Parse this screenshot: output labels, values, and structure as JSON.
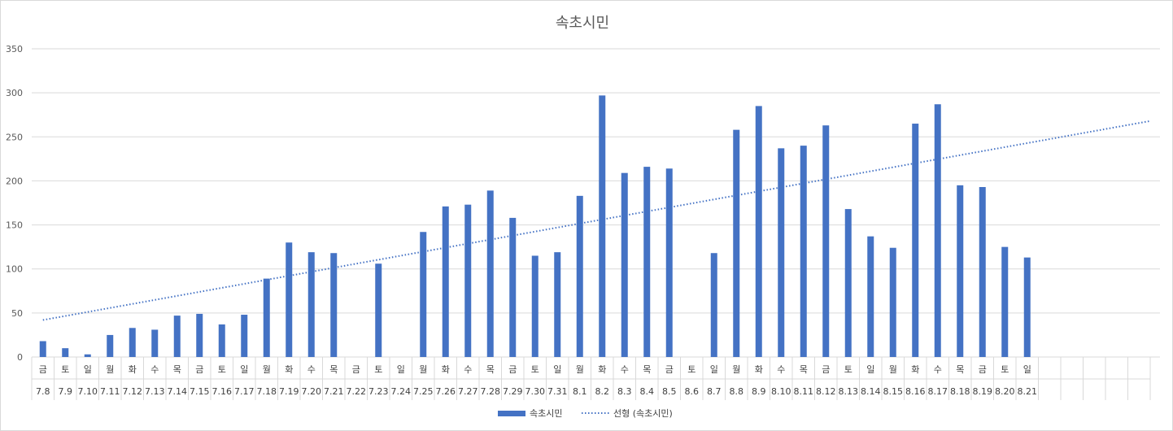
{
  "chart_data": {
    "type": "bar",
    "title": "속초시민",
    "ylim": [
      0,
      350
    ],
    "yticks": [
      0,
      50,
      100,
      150,
      200,
      250,
      300,
      350
    ],
    "grid": true,
    "weekdays": [
      "금",
      "토",
      "일",
      "월",
      "화",
      "수",
      "목",
      "금",
      "토",
      "일",
      "월",
      "화",
      "수",
      "목",
      "금",
      "토",
      "일",
      "월",
      "화",
      "수",
      "목",
      "금",
      "토",
      "일",
      "월",
      "화",
      "수",
      "목",
      "금",
      "토",
      "일",
      "월",
      "화",
      "수",
      "목",
      "금",
      "토",
      "일",
      "월",
      "화",
      "수",
      "목",
      "금",
      "토",
      "일"
    ],
    "categories": [
      "7.8",
      "7.9",
      "7.10",
      "7.11",
      "7.12",
      "7.13",
      "7.14",
      "7.15",
      "7.16",
      "7.17",
      "7.18",
      "7.19",
      "7.20",
      "7.21",
      "7.22",
      "7.23",
      "7.24",
      "7.25",
      "7.26",
      "7.27",
      "7.28",
      "7.29",
      "7.30",
      "7.31",
      "8.1",
      "8.2",
      "8.3",
      "8.4",
      "8.5",
      "8.6",
      "8.7",
      "8.8",
      "8.9",
      "8.10",
      "8.11",
      "8.12",
      "8.13",
      "8.14",
      "8.15",
      "8.16",
      "8.17",
      "8.18",
      "8.19",
      "8.20",
      "8.21"
    ],
    "extra_empty_columns": 5,
    "series": [
      {
        "name": "속초시민",
        "color": "#4472c4",
        "values": [
          18,
          10,
          3,
          25,
          33,
          31,
          47,
          49,
          37,
          48,
          89,
          130,
          119,
          118,
          null,
          106,
          null,
          142,
          171,
          173,
          189,
          158,
          115,
          119,
          183,
          297,
          209,
          216,
          214,
          null,
          118,
          258,
          285,
          237,
          240,
          263,
          168,
          137,
          124,
          265,
          287,
          195,
          193,
          125,
          113
        ]
      }
    ],
    "trendline": {
      "name": "선형 (속초시민)",
      "type": "linear",
      "start_value": 42,
      "end_value": 268,
      "end_column": 50
    },
    "legend_position": "bottom"
  }
}
